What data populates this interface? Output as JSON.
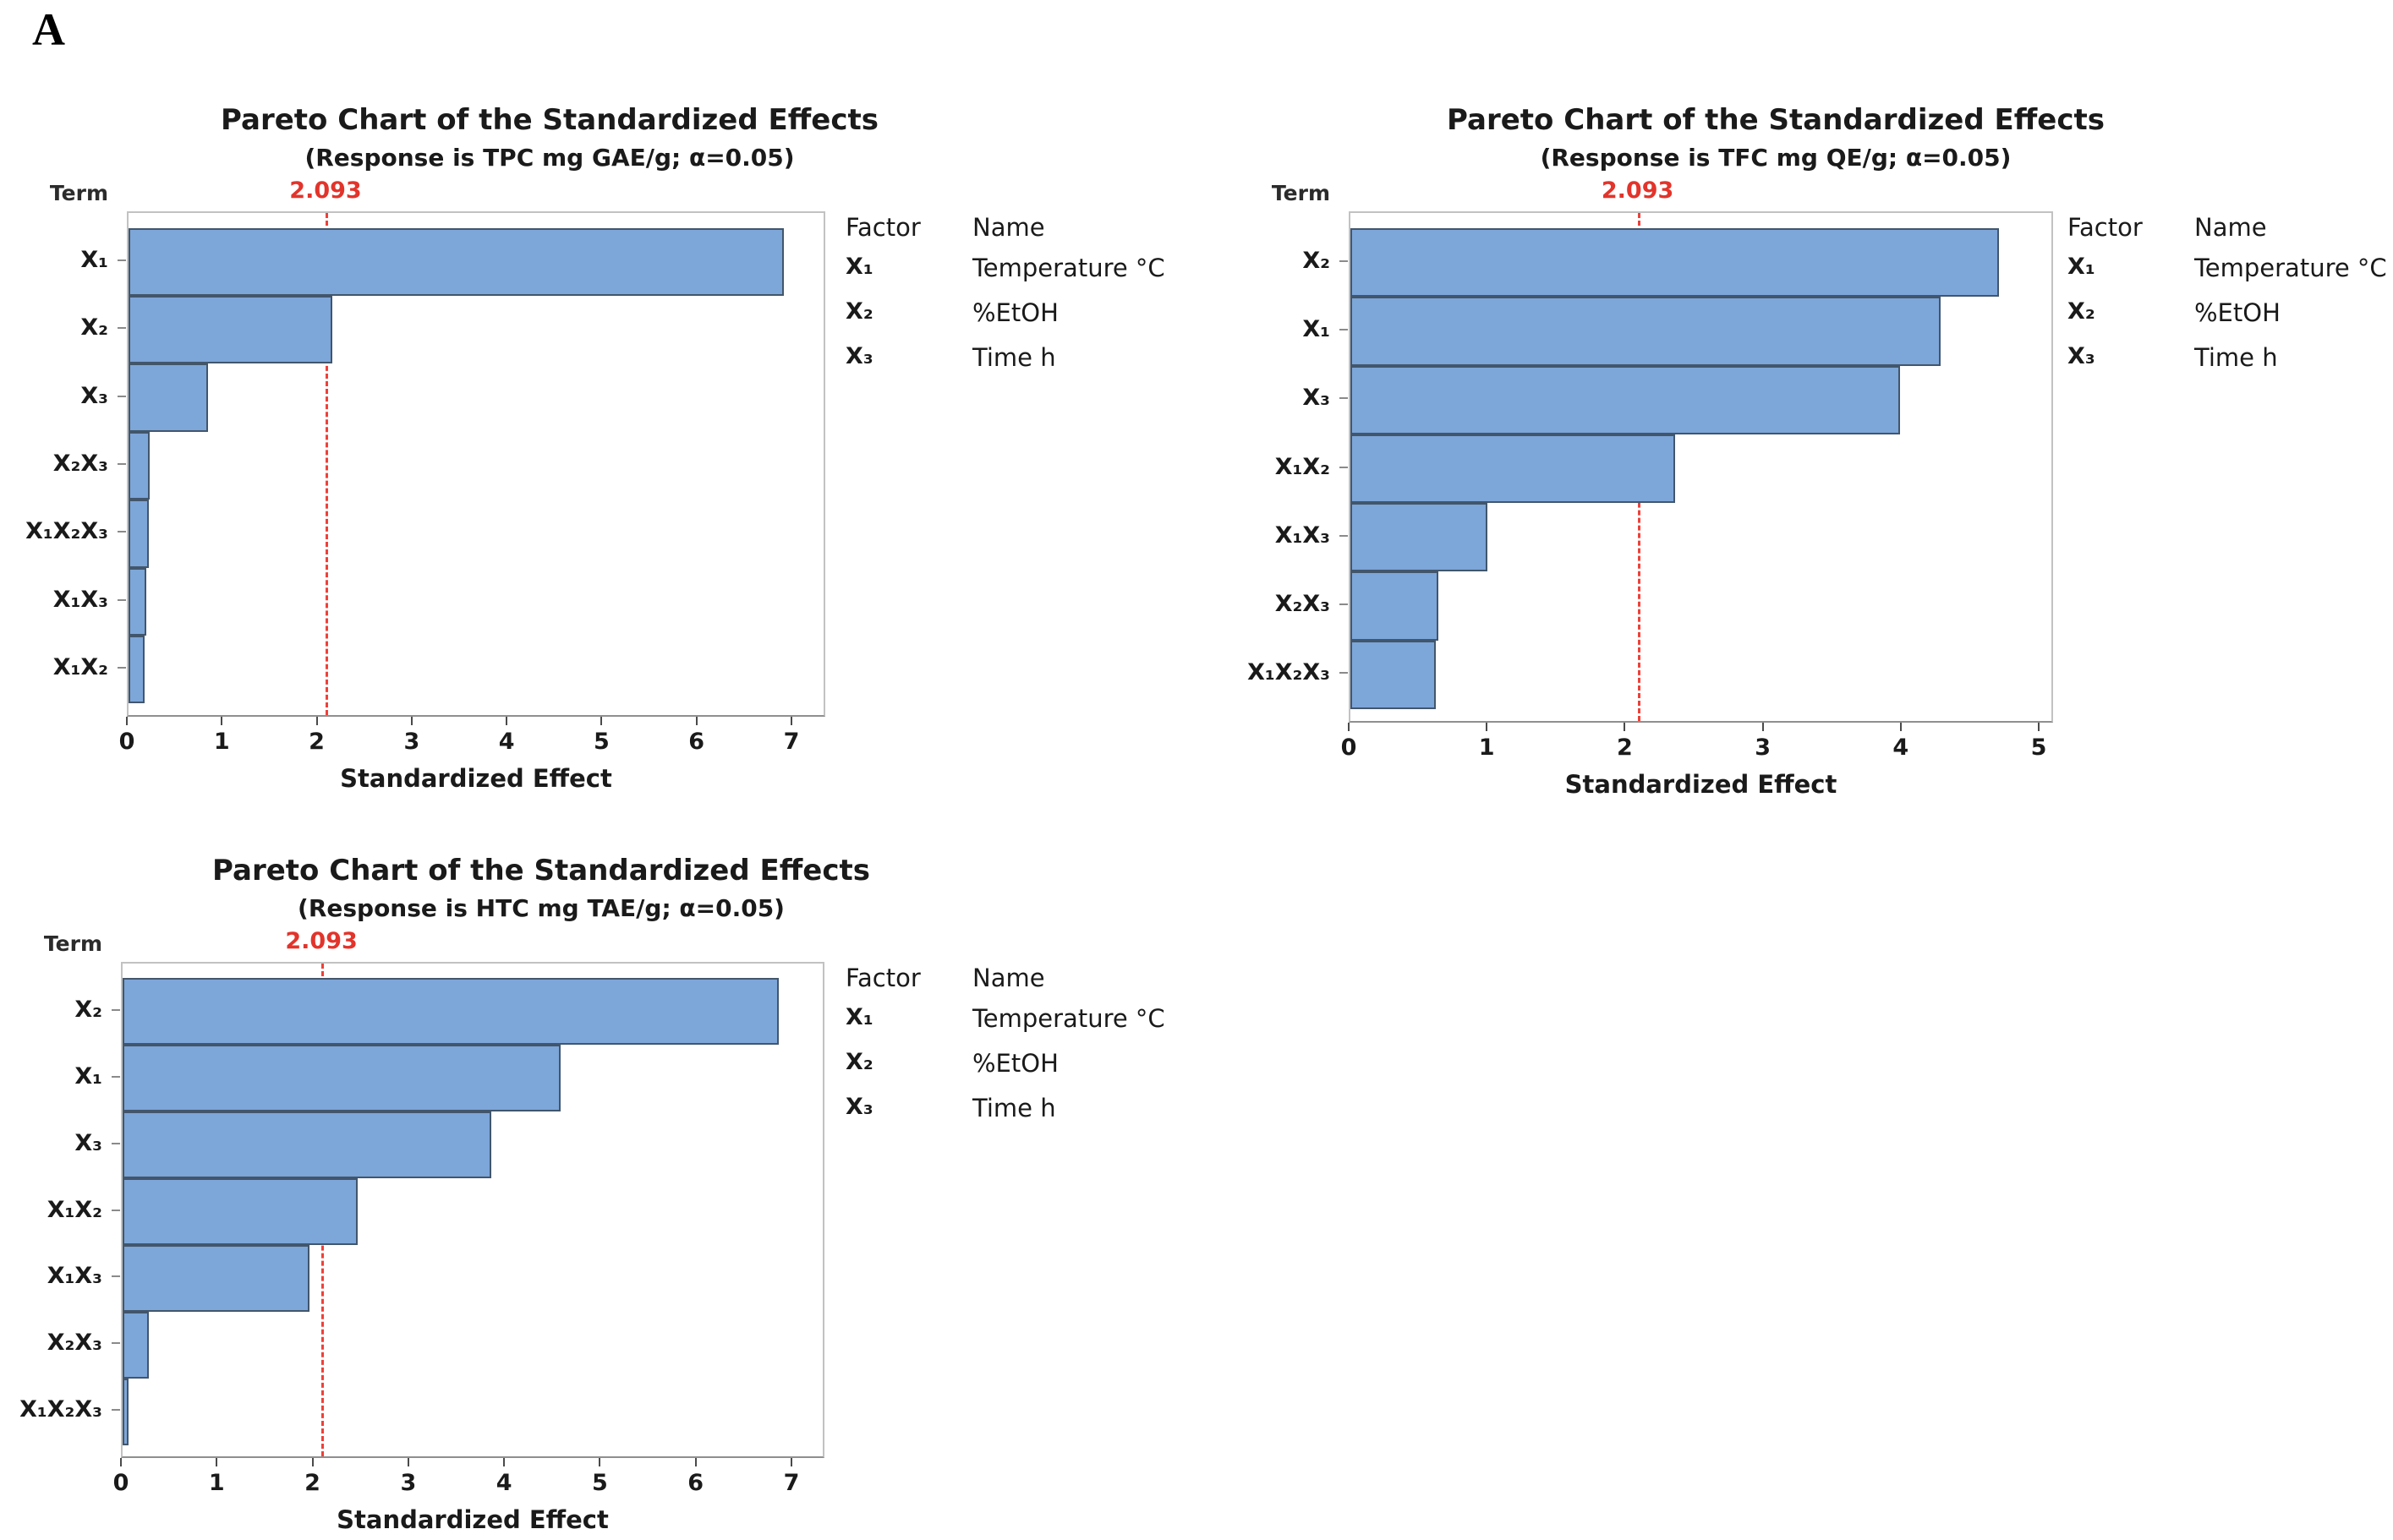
{
  "figure_label": "A",
  "chart_data": [
    {
      "type": "bar",
      "orientation": "horizontal",
      "title": "Pareto Chart of the Standardized Effects",
      "subtitle": "(Response is TPC mg GAE/g; α=0.05)",
      "xlabel": "Standardized Effect",
      "ylabel": "Term",
      "categories": [
        "X₁",
        "X₂",
        "X₃",
        "X₂X₃",
        "X₁X₂X₃",
        "X₁X₃",
        "X₁X₂"
      ],
      "values": [
        6.9,
        2.15,
        0.84,
        0.22,
        0.21,
        0.19,
        0.17
      ],
      "xlim": [
        0,
        7
      ],
      "xticks": [
        0,
        1,
        2,
        3,
        4,
        5,
        6,
        7
      ],
      "grid": false,
      "legend_position": "right",
      "bar_color": "#7da6d9",
      "bar_border_color": "#42566b",
      "reference_line": {
        "value": 2.093,
        "label": "2.093",
        "color": "#ef4038",
        "label_color": "#e2342b",
        "style": "dashed"
      },
      "legend": {
        "factor_header": "Factor",
        "name_header": "Name",
        "rows": [
          {
            "factor": "X₁",
            "name": "Temperature °C"
          },
          {
            "factor": "X₂",
            "name": "%EtOH"
          },
          {
            "factor": "X₃",
            "name": "Time h"
          }
        ]
      }
    },
    {
      "type": "bar",
      "orientation": "horizontal",
      "title": "Pareto Chart of the Standardized Effects",
      "subtitle": "(Response is TFC mg QE/g; α=0.05)",
      "xlabel": "Standardized Effect",
      "ylabel": "Term",
      "categories": [
        "X₂",
        "X₁",
        "X₃",
        "X₁X₂",
        "X₁X₃",
        "X₂X₃",
        "X₁X₂X₃"
      ],
      "values": [
        4.7,
        4.28,
        3.98,
        2.35,
        0.99,
        0.64,
        0.62
      ],
      "xlim": [
        0,
        5
      ],
      "xticks": [
        0,
        1,
        2,
        3,
        4,
        5
      ],
      "grid": false,
      "legend_position": "right",
      "bar_color": "#7da6d9",
      "bar_border_color": "#42566b",
      "reference_line": {
        "value": 2.093,
        "label": "2.093",
        "color": "#ef4038",
        "label_color": "#e2342b",
        "style": "dashed"
      },
      "legend": {
        "factor_header": "Factor",
        "name_header": "Name",
        "rows": [
          {
            "factor": "X₁",
            "name": "Temperature °C"
          },
          {
            "factor": "X₂",
            "name": "%EtOH"
          },
          {
            "factor": "X₃",
            "name": "Time h"
          }
        ]
      }
    },
    {
      "type": "bar",
      "orientation": "horizontal",
      "title": "Pareto Chart of the Standardized Effects",
      "subtitle": "(Response is HTC mg TAE/g; α=0.05)",
      "xlabel": "Standardized Effect",
      "ylabel": "Term",
      "categories": [
        "X₂",
        "X₁",
        "X₃",
        "X₁X₂",
        "X₁X₃",
        "X₂X₃",
        "X₁X₂X₃"
      ],
      "values": [
        6.85,
        4.57,
        3.85,
        2.45,
        1.95,
        0.27,
        0.06
      ],
      "xlim": [
        0,
        7
      ],
      "xticks": [
        0,
        1,
        2,
        3,
        4,
        5,
        6,
        7
      ],
      "grid": false,
      "legend_position": "right",
      "bar_color": "#7da6d9",
      "bar_border_color": "#42566b",
      "reference_line": {
        "value": 2.093,
        "label": "2.093",
        "color": "#ef4038",
        "label_color": "#e2342b",
        "style": "dashed"
      },
      "legend": {
        "factor_header": "Factor",
        "name_header": "Name",
        "rows": [
          {
            "factor": "X₁",
            "name": "Temperature °C"
          },
          {
            "factor": "X₂",
            "name": "%EtOH"
          },
          {
            "factor": "X₃",
            "name": "Time h"
          }
        ]
      }
    }
  ]
}
